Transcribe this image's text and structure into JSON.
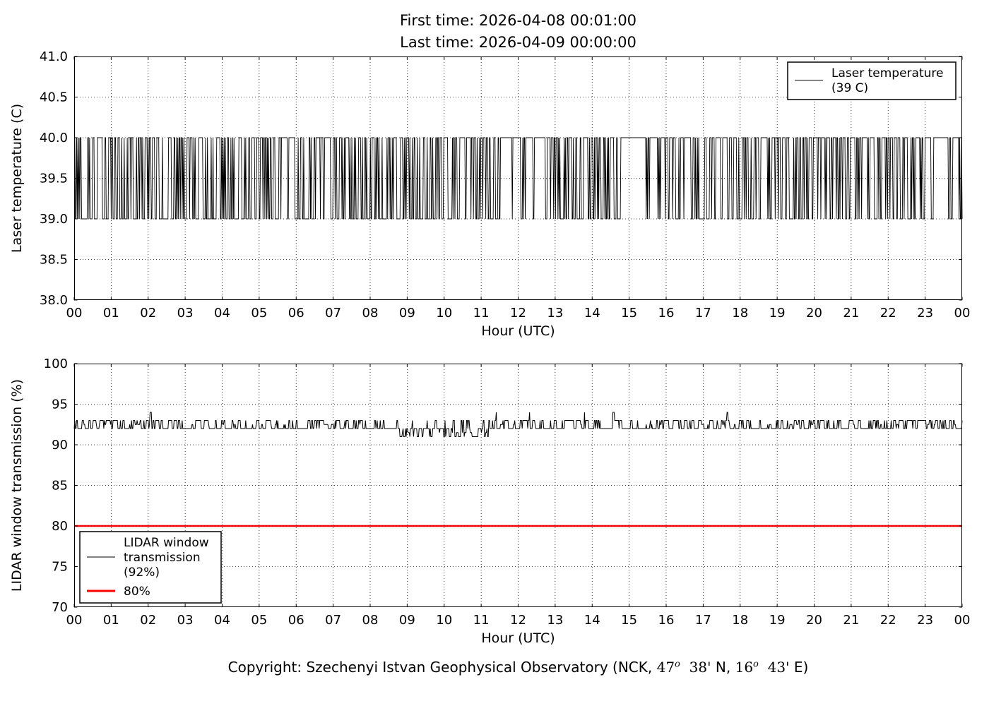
{
  "title": {
    "line1": "First time: 2026-04-08 00:01:00",
    "line2": "Last time: 2026-04-09 00:00:00"
  },
  "footer": {
    "part1": "Copyright: Szechenyi Istvan Geophysical Observatory (NCK, ",
    "lat_deg": "47",
    "deg_symbol": "o",
    "lat_min": "  38'",
    "n_label": " N, ",
    "lon_deg": "16",
    "lon_min": "  43'",
    "e_label": " E)"
  },
  "colors": {
    "series": "#000000",
    "threshold": "#ff0000",
    "frame": "#000000",
    "grid": "#000000",
    "background": "#ffffff"
  },
  "chart_data": [
    {
      "type": "line",
      "name": "laser-temperature",
      "ylabel": "Laser temperature (C)",
      "xlabel": "Hour (UTC)",
      "xlim": [
        0,
        24
      ],
      "ylim": [
        38.0,
        41.0
      ],
      "xticks": [
        0,
        1,
        2,
        3,
        4,
        5,
        6,
        7,
        8,
        9,
        10,
        11,
        12,
        13,
        14,
        15,
        16,
        17,
        18,
        19,
        20,
        21,
        22,
        23,
        24
      ],
      "xtick_labels": [
        "00",
        "01",
        "02",
        "03",
        "04",
        "05",
        "06",
        "07",
        "08",
        "09",
        "10",
        "11",
        "12",
        "13",
        "14",
        "15",
        "16",
        "17",
        "18",
        "19",
        "20",
        "21",
        "22",
        "23",
        "00"
      ],
      "yticks": [
        38.0,
        38.5,
        39.0,
        39.5,
        40.0,
        40.5,
        41.0
      ],
      "ytick_labels": [
        "38.0",
        "38.5",
        "39.0",
        "39.5",
        "40.0",
        "40.5",
        "41.0"
      ],
      "grid": "dotted",
      "legend": {
        "position": "upper-right",
        "entries": [
          {
            "label_lines": [
              "Laser temperature",
              "(39 C)"
            ],
            "color": "#000000",
            "linewidth": 1
          }
        ]
      },
      "series": [
        {
          "name": "Laser temperature",
          "reported_value": "39 C",
          "color": "#000000",
          "signal": "binary-toggle",
          "samples": 1440,
          "seed": 42,
          "levels": [
            39,
            40
          ],
          "halfhour_fraction_at_low": [
            0.55,
            0.5,
            0.5,
            0.5,
            0.5,
            0.55,
            0.6,
            0.55,
            0.5,
            0.5,
            0.5,
            0.45,
            0.5,
            0.22,
            0.45,
            0.5,
            0.5,
            0.5,
            0.55,
            0.55,
            0.5,
            0.5,
            0.45,
            0.1,
            0.12,
            0.3,
            0.45,
            0.55,
            0.6,
            0.3,
            0.15,
            0.3,
            0.4,
            0.35,
            0.35,
            0.3,
            0.4,
            0.3,
            0.25,
            0.35,
            0.3,
            0.25,
            0.3,
            0.35,
            0.4,
            0.3,
            0.3,
            0.35
          ]
        }
      ]
    },
    {
      "type": "line",
      "name": "lidar-window-transmission",
      "ylabel": "LIDAR window transmission (%)",
      "xlabel": "Hour (UTC)",
      "xlim": [
        0,
        24
      ],
      "ylim": [
        70,
        100
      ],
      "xticks": [
        0,
        1,
        2,
        3,
        4,
        5,
        6,
        7,
        8,
        9,
        10,
        11,
        12,
        13,
        14,
        15,
        16,
        17,
        18,
        19,
        20,
        21,
        22,
        23,
        24
      ],
      "xtick_labels": [
        "00",
        "01",
        "02",
        "03",
        "04",
        "05",
        "06",
        "07",
        "08",
        "09",
        "10",
        "11",
        "12",
        "13",
        "14",
        "15",
        "16",
        "17",
        "18",
        "19",
        "20",
        "21",
        "22",
        "23",
        "00"
      ],
      "yticks": [
        70,
        75,
        80,
        85,
        90,
        95,
        100
      ],
      "ytick_labels": [
        "70",
        "75",
        "80",
        "85",
        "90",
        "95",
        "100"
      ],
      "grid": "dotted",
      "legend": {
        "position": "lower-left",
        "entries": [
          {
            "label_lines": [
              "LIDAR window",
              "transmission",
              "(92%)"
            ],
            "color": "#000000",
            "linewidth": 1
          },
          {
            "label_lines": [
              "80%"
            ],
            "color": "#ff0000",
            "linewidth": 3
          }
        ]
      },
      "series": [
        {
          "name": "LIDAR window transmission",
          "reported_value": "92%",
          "color": "#000000",
          "signal": "noisy-step",
          "samples": 1440,
          "seed": 7,
          "levels": {
            "base": 92,
            "high": 93,
            "mid": 92.5,
            "low": 91,
            "low_mid": 91.5,
            "spike": 94,
            "deep": 90.7
          },
          "dip_window_hours": [
            8.7,
            11.2
          ]
        }
      ],
      "threshold": {
        "value": 80,
        "label": "80%",
        "color": "#ff0000",
        "linewidth": 2.5
      }
    }
  ]
}
